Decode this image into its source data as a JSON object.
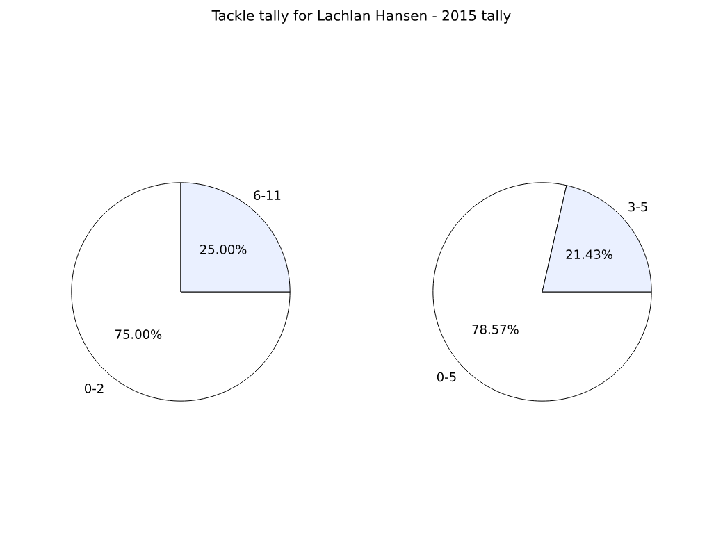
{
  "chart_data": [
    {
      "type": "pie",
      "title": "Tackle tally for Lachlan Hansen - 2015 tally",
      "categories": [
        "0-2",
        "6-11"
      ],
      "values": [
        75,
        25
      ],
      "colors": [
        "#ffffff",
        "#eaf0ff"
      ],
      "value_labels": [
        "75.00%",
        "25.00%"
      ]
    },
    {
      "type": "pie",
      "categories": [
        "0-5",
        "3-5"
      ],
      "values": [
        78.57,
        21.43
      ],
      "colors": [
        "#ffffff",
        "#eaf0ff"
      ],
      "value_labels": [
        "78.57%",
        "21.43%"
      ]
    }
  ]
}
